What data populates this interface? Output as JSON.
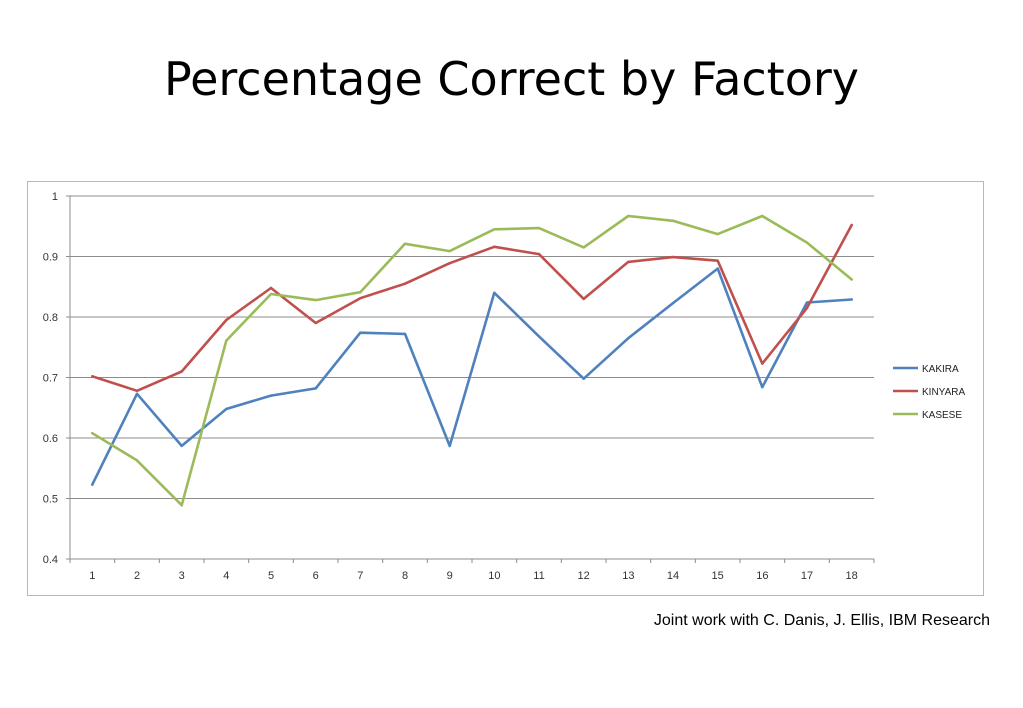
{
  "slide": {
    "title": "Percentage Correct by Factory",
    "credit": "Joint work with C. Danis, J. Ellis, IBM Research"
  },
  "chart_data": {
    "type": "line",
    "title": "",
    "xlabel": "",
    "ylabel": "",
    "x": [
      1,
      2,
      3,
      4,
      5,
      6,
      7,
      8,
      9,
      10,
      11,
      12,
      13,
      14,
      15,
      16,
      17,
      18
    ],
    "ylim": [
      0.4,
      1
    ],
    "yticks": [
      "0.4",
      "0.5",
      "0.6",
      "0.7",
      "0.8",
      "0.9",
      "1"
    ],
    "grid": true,
    "legend_position": "right",
    "series": [
      {
        "name": "KAKIRA",
        "color": "#4f81bd",
        "values": [
          0.523,
          0.673,
          0.587,
          0.648,
          0.67,
          0.682,
          0.774,
          0.772,
          0.587,
          0.84,
          0.768,
          0.698,
          0.765,
          0.823,
          0.88,
          0.684,
          0.824,
          0.829
        ]
      },
      {
        "name": "KINYARA",
        "color": "#c0504d",
        "values": [
          0.702,
          0.678,
          0.71,
          0.795,
          0.848,
          0.79,
          0.831,
          0.855,
          0.889,
          0.916,
          0.904,
          0.83,
          0.891,
          0.899,
          0.893,
          0.723,
          0.815,
          0.952
        ]
      },
      {
        "name": "KASESE",
        "color": "#9bbb59",
        "values": [
          0.608,
          0.563,
          0.489,
          0.761,
          0.838,
          0.828,
          0.841,
          0.921,
          0.909,
          0.945,
          0.947,
          0.915,
          0.967,
          0.959,
          0.937,
          0.967,
          0.923,
          0.862
        ]
      }
    ]
  }
}
